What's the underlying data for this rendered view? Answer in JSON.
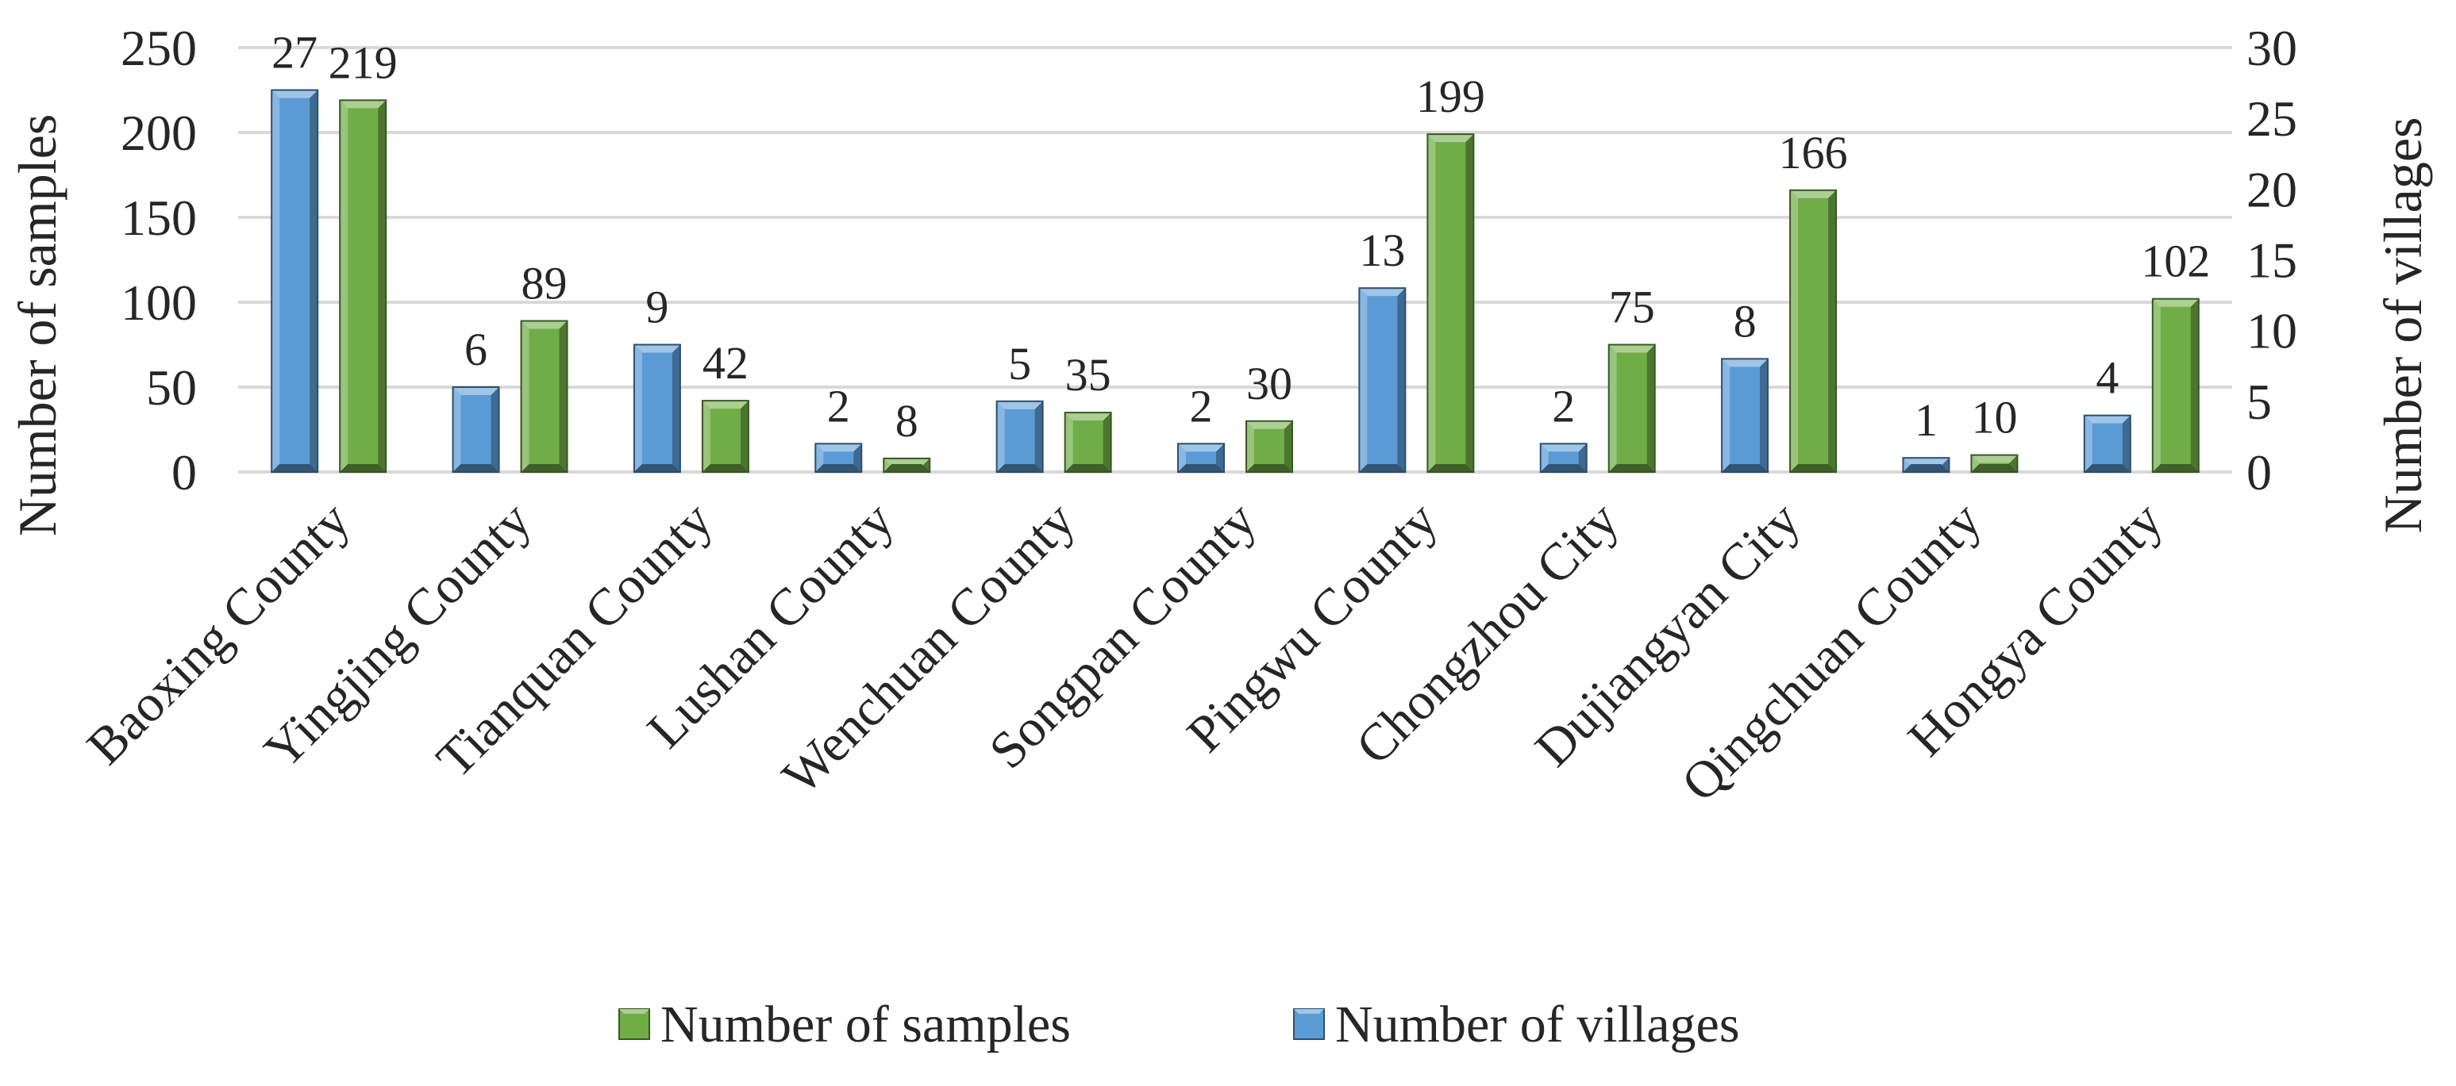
{
  "chart_data": {
    "type": "bar",
    "categories": [
      "Baoxing County",
      "Yingjing County",
      "Tianquan County",
      "Lushan County",
      "Wenchuan County",
      "Songpan County",
      "Pingwu County",
      "Chongzhou City",
      "Dujiangyan City",
      "Qingchuan County",
      "Hongya County"
    ],
    "series": [
      {
        "name": "Number of villages",
        "axis": "right",
        "color": "#5B9BD5",
        "values": [
          27,
          6,
          9,
          2,
          5,
          2,
          13,
          2,
          8,
          1,
          4
        ],
        "labels": [
          "27",
          "6",
          "9",
          "2",
          "5",
          "2",
          "13",
          "2",
          "8",
          "1",
          "4"
        ]
      },
      {
        "name": "Number of samples",
        "axis": "left",
        "color": "#70AD47",
        "values": [
          219,
          89,
          42,
          8,
          35,
          30,
          199,
          75,
          166,
          10,
          102
        ],
        "labels": [
          "219",
          "89",
          "42",
          "8",
          "35",
          "30",
          "199",
          "75",
          "166",
          "10",
          "102"
        ]
      }
    ],
    "ylabel": "Number of samples",
    "y2label": "Number of villages",
    "ylim": [
      0,
      250
    ],
    "y2lim": [
      0,
      30
    ],
    "yticks": [
      "0",
      "50",
      "100",
      "150",
      "200",
      "250"
    ],
    "y2ticks": [
      "0",
      "5",
      "10",
      "15",
      "20",
      "25",
      "30"
    ],
    "grid": true,
    "legend_position": "bottom",
    "legend": [
      {
        "name": "Number of samples",
        "color": "#70AD47"
      },
      {
        "name": "Number of villages",
        "color": "#5B9BD5"
      }
    ]
  }
}
